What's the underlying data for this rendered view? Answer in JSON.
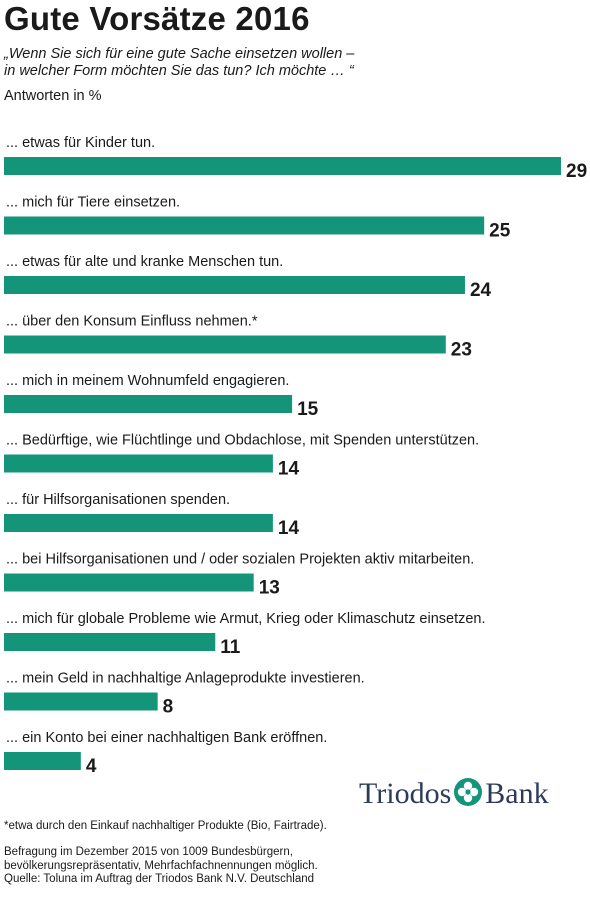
{
  "header": {
    "title": "Gute Vorsätze 2016",
    "subtitle_line1": "„Wenn Sie sich für eine gute Sache einsetzen wollen –",
    "subtitle_line2": "in welcher Form möchten Sie das tun? Ich möchte … “",
    "unit": "Antworten in %"
  },
  "colors": {
    "bar": "#14957a",
    "logo_text": "#2d3a5c",
    "logo_icon": "#14957a"
  },
  "chart_data": {
    "type": "bar",
    "orientation": "horizontal",
    "categories": [
      "... etwas für Kinder tun.",
      "... mich für Tiere einsetzen.",
      "... etwas für alte und kranke Menschen tun.",
      "... über den Konsum Einfluss nehmen.*",
      "... mich in meinem Wohnumfeld engagieren.",
      "... Bedürftige, wie Flüchtlinge und Obdachlose, mit Spenden unterstützen.",
      "... für Hilfsorganisationen spenden.",
      "... bei Hilfsorganisationen und / oder sozialen Projekten aktiv mitarbeiten.",
      "... mich für globale Probleme wie Armut, Krieg oder Klimaschutz einsetzen.",
      "... mein Geld in nachhaltige Anlageprodukte investieren.",
      "... ein Konto bei einer nachhaltigen Bank eröffnen."
    ],
    "values": [
      29,
      25,
      24,
      23,
      15,
      14,
      14,
      13,
      11,
      8,
      4
    ],
    "data_labels": [
      "29",
      "25",
      "24",
      "23",
      "15",
      "14",
      "14",
      "13",
      "11",
      "8",
      "4"
    ],
    "title": "Gute Vorsätze 2016",
    "unit": "Antworten in %",
    "grid": false,
    "legend": "none"
  },
  "logo": {
    "text_left": "Triodos",
    "text_right": "Bank",
    "icon": "triodos-flower-icon"
  },
  "footer": {
    "footnote": "*etwa durch den Einkauf nachhaltiger Produkte (Bio, Fairtrade).",
    "source_line1": "Befragung im Dezember 2015 von 1009 Bundesbürgern,",
    "source_line2": "bevölkerungsrepräsentativ, Mehrfachfachnennungen möglich.",
    "source_line3": "Quelle: Toluna im Auftrag der Triodos Bank N.V. Deutschland"
  }
}
